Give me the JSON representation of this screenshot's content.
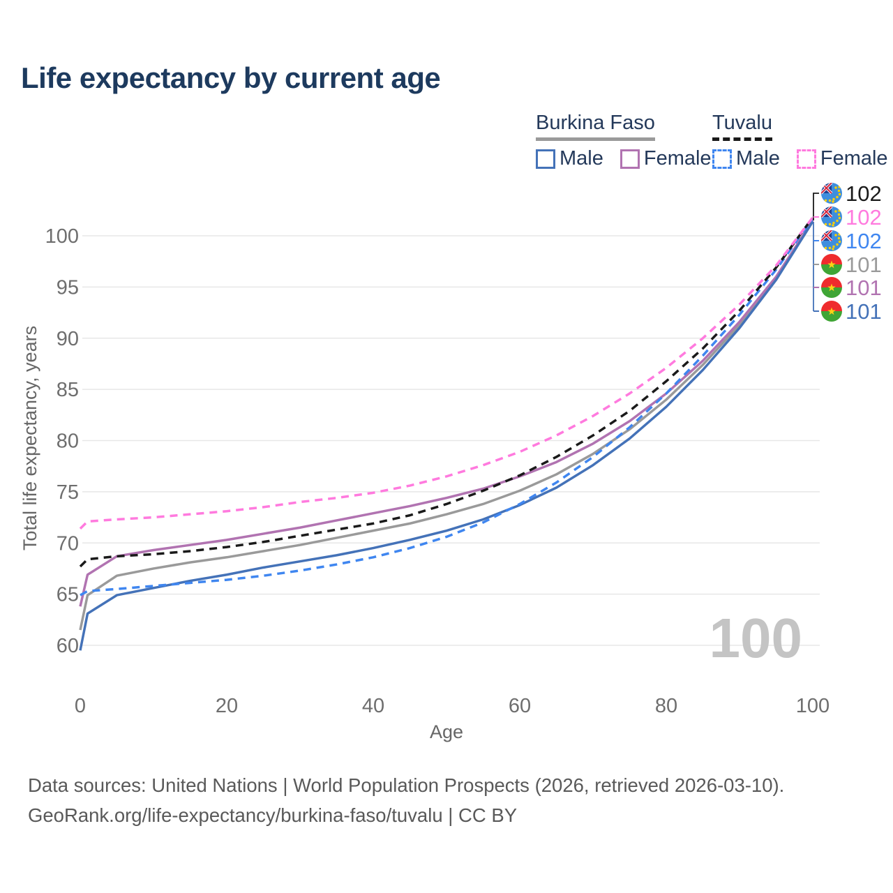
{
  "title": "Life expectancy by current age",
  "legend": {
    "position": "top-right",
    "groups": [
      {
        "label": "Burkina Faso",
        "style": "solid",
        "line_color": "#9a9a9a",
        "items": [
          {
            "label": "Male",
            "color": "#4472b8"
          },
          {
            "label": "Female",
            "color": "#b173b1"
          }
        ]
      },
      {
        "label": "Tuvalu",
        "style": "dashed",
        "line_color": "#1a1a1a",
        "items": [
          {
            "label": "Male",
            "color": "#3f86f0"
          },
          {
            "label": "Female",
            "color": "#ff7ade"
          }
        ]
      }
    ]
  },
  "watermark": "100",
  "footer": {
    "line1": "Data sources: United Nations | World Population Prospects (2026, retrieved 2026-03-10).",
    "line2": "GeoRank.org/life-expectancy/burkina-faso/tuvalu | CC BY"
  },
  "end_labels": [
    {
      "value": "102",
      "color": "#1a1a1a",
      "flag": "tuvalu",
      "series": "Tuvalu Both sexes"
    },
    {
      "value": "102",
      "color": "#ff7ade",
      "flag": "tuvalu",
      "series": "Tuvalu Female"
    },
    {
      "value": "102",
      "color": "#3f86f0",
      "flag": "tuvalu",
      "series": "Tuvalu Male"
    },
    {
      "value": "101",
      "color": "#9a9a9a",
      "flag": "burkina-faso",
      "series": "Burkina Faso Both sexes"
    },
    {
      "value": "101",
      "color": "#b173b1",
      "flag": "burkina-faso",
      "series": "Burkina Faso Female"
    },
    {
      "value": "101",
      "color": "#4472b8",
      "flag": "burkina-faso",
      "series": "Burkina Faso Male"
    }
  ],
  "chart_data": {
    "type": "line",
    "title": "Life expectancy by current age",
    "xlabel": "Age",
    "ylabel": "Total life expectancy, years",
    "xlim": [
      0,
      100
    ],
    "ylim": [
      58,
      103
    ],
    "x_ticks": [
      0,
      20,
      40,
      60,
      80,
      100
    ],
    "y_ticks": [
      60,
      65,
      70,
      75,
      80,
      85,
      90,
      95,
      100
    ],
    "grid": "horizontal",
    "legend_position": "top-right",
    "x": [
      0,
      1,
      5,
      10,
      15,
      20,
      25,
      30,
      35,
      40,
      45,
      50,
      55,
      60,
      65,
      70,
      75,
      80,
      85,
      90,
      95,
      100
    ],
    "series": [
      {
        "name": "Burkina Faso Both sexes",
        "country": "Burkina Faso",
        "sex": "both",
        "color": "#9a9a9a",
        "dash": "solid",
        "end_label": "101",
        "values": [
          61.5,
          64.9,
          66.8,
          67.5,
          68.1,
          68.6,
          69.2,
          69.8,
          70.5,
          71.2,
          71.9,
          72.8,
          73.8,
          75.1,
          76.7,
          78.7,
          81.1,
          84.0,
          87.4,
          91.3,
          95.8,
          101.4
        ]
      },
      {
        "name": "Burkina Faso Female",
        "country": "Burkina Faso",
        "sex": "female",
        "color": "#b173b1",
        "dash": "solid",
        "end_label": "101",
        "values": [
          63.8,
          66.9,
          68.7,
          69.3,
          69.8,
          70.3,
          70.9,
          71.5,
          72.2,
          72.9,
          73.6,
          74.4,
          75.3,
          76.5,
          77.9,
          79.7,
          81.9,
          84.6,
          87.8,
          91.6,
          96.0,
          101.5
        ]
      },
      {
        "name": "Burkina Faso Male",
        "country": "Burkina Faso",
        "sex": "male",
        "color": "#4472b8",
        "dash": "solid",
        "end_label": "101",
        "values": [
          59.5,
          63.1,
          64.9,
          65.6,
          66.3,
          66.9,
          67.6,
          68.2,
          68.8,
          69.5,
          70.3,
          71.2,
          72.3,
          73.7,
          75.4,
          77.6,
          80.2,
          83.3,
          86.9,
          91.0,
          95.7,
          101.4
        ]
      },
      {
        "name": "Tuvalu Male",
        "country": "Tuvalu",
        "sex": "male",
        "color": "#3f86f0",
        "dash": "dashed",
        "end_label": "102",
        "values": [
          64.9,
          65.3,
          65.5,
          65.8,
          66.1,
          66.4,
          66.8,
          67.3,
          67.9,
          68.6,
          69.5,
          70.6,
          72.0,
          73.8,
          75.9,
          78.4,
          81.3,
          84.6,
          88.3,
          92.3,
          96.7,
          101.7
        ]
      },
      {
        "name": "Tuvalu Both sexes",
        "country": "Tuvalu",
        "sex": "both",
        "color": "#1a1a1a",
        "dash": "dashed",
        "end_label": "102",
        "values": [
          67.7,
          68.4,
          68.7,
          68.9,
          69.2,
          69.6,
          70.1,
          70.7,
          71.3,
          71.9,
          72.7,
          73.8,
          75.1,
          76.6,
          78.4,
          80.5,
          82.9,
          85.8,
          89.0,
          92.7,
          96.9,
          101.8
        ]
      },
      {
        "name": "Tuvalu Female",
        "country": "Tuvalu",
        "sex": "female",
        "color": "#ff7ade",
        "dash": "dashed",
        "end_label": "102",
        "values": [
          71.4,
          72.1,
          72.3,
          72.5,
          72.8,
          73.1,
          73.5,
          74.0,
          74.4,
          74.9,
          75.6,
          76.5,
          77.6,
          78.9,
          80.5,
          82.4,
          84.6,
          87.1,
          90.0,
          93.3,
          97.1,
          101.8
        ]
      }
    ]
  }
}
